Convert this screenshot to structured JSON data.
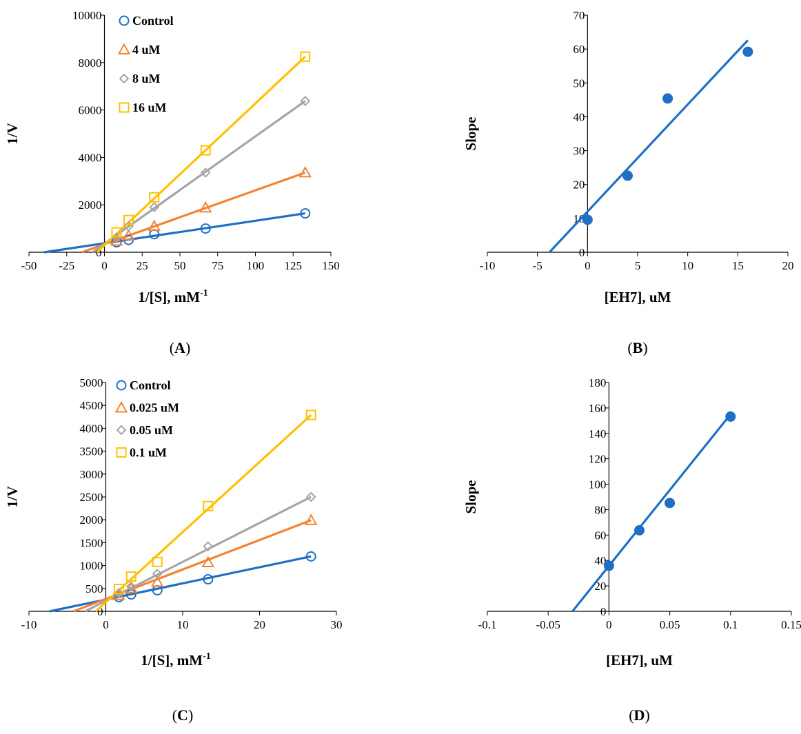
{
  "chart_data": [
    {
      "id": "A",
      "type": "scatter",
      "panel_label": "A",
      "xlabel": "1/[S], mM",
      "xlabel_sup": "-1",
      "ylabel": "1/V",
      "xlim": [
        -50,
        150
      ],
      "ylim": [
        0,
        10000
      ],
      "xticks": [
        -50,
        -25,
        0,
        25,
        50,
        75,
        100,
        125,
        150
      ],
      "yticks": [
        0,
        2000,
        4000,
        6000,
        8000,
        10000
      ],
      "legend_position": "top-left",
      "series": [
        {
          "name": "Control",
          "marker": "circle",
          "color": "#1f6fc5",
          "x": [
            8,
            16,
            33,
            67,
            133
          ],
          "y": [
            420,
            520,
            760,
            1000,
            1640
          ],
          "line": {
            "x": [
              -40,
              133
            ],
            "y": [
              0,
              1640
            ]
          }
        },
        {
          "name": "4 uM",
          "marker": "triangle",
          "color": "#f58232",
          "x": [
            8,
            16,
            33,
            67,
            133
          ],
          "y": [
            480,
            700,
            1100,
            1880,
            3360
          ],
          "line": {
            "x": [
              -15,
              133
            ],
            "y": [
              0,
              3360
            ]
          }
        },
        {
          "name": "8 uM",
          "marker": "diamond",
          "color": "#a5a5a5",
          "x": [
            8,
            16,
            33,
            67,
            133
          ],
          "y": [
            620,
            1100,
            1900,
            3360,
            6380
          ],
          "line": {
            "x": [
              -8,
              133
            ],
            "y": [
              0,
              6380
            ]
          }
        },
        {
          "name": "16 uM",
          "marker": "square",
          "color": "#ffc000",
          "x": [
            8,
            16,
            33,
            67,
            133
          ],
          "y": [
            840,
            1360,
            2320,
            4300,
            8250
          ],
          "line": {
            "x": [
              -5,
              133
            ],
            "y": [
              0,
              8250
            ]
          }
        }
      ]
    },
    {
      "id": "B",
      "type": "scatter",
      "panel_label": "B",
      "xlabel": "[EH7], uM",
      "ylabel": "Slope",
      "xlim": [
        -10,
        20
      ],
      "ylim": [
        0,
        70
      ],
      "xticks": [
        -10,
        -5,
        0,
        5,
        10,
        15,
        20
      ],
      "yticks": [
        0,
        10,
        20,
        30,
        40,
        50,
        60,
        70
      ],
      "series": [
        {
          "name": "Slope",
          "marker": "filled-circle",
          "color": "#1f6fc5",
          "x": [
            0,
            4,
            8,
            16
          ],
          "y": [
            9.6,
            22.6,
            45.4,
            59.2
          ],
          "line": {
            "x": [
              -3.8,
              16
            ],
            "y": [
              0,
              62.6
            ]
          }
        }
      ]
    },
    {
      "id": "C",
      "type": "scatter",
      "panel_label": "C",
      "xlabel": "1/[S], mM",
      "xlabel_sup": "-1",
      "ylabel": "1/V",
      "xlim": [
        -10,
        30
      ],
      "ylim": [
        0,
        5000
      ],
      "xticks": [
        -10,
        0,
        10,
        20,
        30
      ],
      "yticks": [
        0,
        500,
        1000,
        1500,
        2000,
        2500,
        3000,
        3500,
        4000,
        4500,
        5000
      ],
      "legend_position": "top-left",
      "series": [
        {
          "name": "Control",
          "marker": "circle",
          "color": "#1f6fc5",
          "x": [
            1.7,
            3.3,
            6.7,
            13.3,
            26.7
          ],
          "y": [
            310,
            370,
            460,
            700,
            1200
          ],
          "line": {
            "x": [
              -7.3,
              26.7
            ],
            "y": [
              0,
              1200
            ]
          }
        },
        {
          "name": "0.025 uM",
          "marker": "triangle",
          "color": "#f58232",
          "x": [
            1.7,
            3.3,
            6.7,
            13.3,
            26.7
          ],
          "y": [
            350,
            500,
            640,
            1070,
            1990
          ],
          "line": {
            "x": [
              -4.2,
              26.7
            ],
            "y": [
              0,
              1990
            ]
          }
        },
        {
          "name": "0.05 uM",
          "marker": "diamond",
          "color": "#a5a5a5",
          "x": [
            1.7,
            3.3,
            6.7,
            13.3,
            26.7
          ],
          "y": [
            400,
            540,
            820,
            1420,
            2500
          ],
          "line": {
            "x": [
              -2.7,
              26.7
            ],
            "y": [
              0,
              2500
            ]
          }
        },
        {
          "name": "0.1 uM",
          "marker": "square",
          "color": "#ffc000",
          "x": [
            1.7,
            3.3,
            6.7,
            13.3,
            26.7
          ],
          "y": [
            490,
            760,
            1080,
            2300,
            4290
          ],
          "line": {
            "x": [
              -1.3,
              26.7
            ],
            "y": [
              0,
              4290
            ]
          }
        }
      ]
    },
    {
      "id": "D",
      "type": "scatter",
      "panel_label": "D",
      "xlabel": "[EH7], uM",
      "ylabel": "Slope",
      "xlim": [
        -0.1,
        0.15
      ],
      "ylim": [
        0,
        180
      ],
      "xticks": [
        -0.1,
        -0.05,
        0,
        0.05,
        0.1,
        0.15
      ],
      "yticks": [
        0,
        20,
        40,
        60,
        80,
        100,
        120,
        140,
        160,
        180
      ],
      "series": [
        {
          "name": "Slope",
          "marker": "filled-circle",
          "color": "#1f6fc5",
          "x": [
            0,
            0.025,
            0.05,
            0.1
          ],
          "y": [
            35.8,
            63.7,
            85.2,
            153.2
          ],
          "line": {
            "x": [
              -0.03,
              0.1
            ],
            "y": [
              0,
              155
            ]
          }
        }
      ]
    }
  ]
}
